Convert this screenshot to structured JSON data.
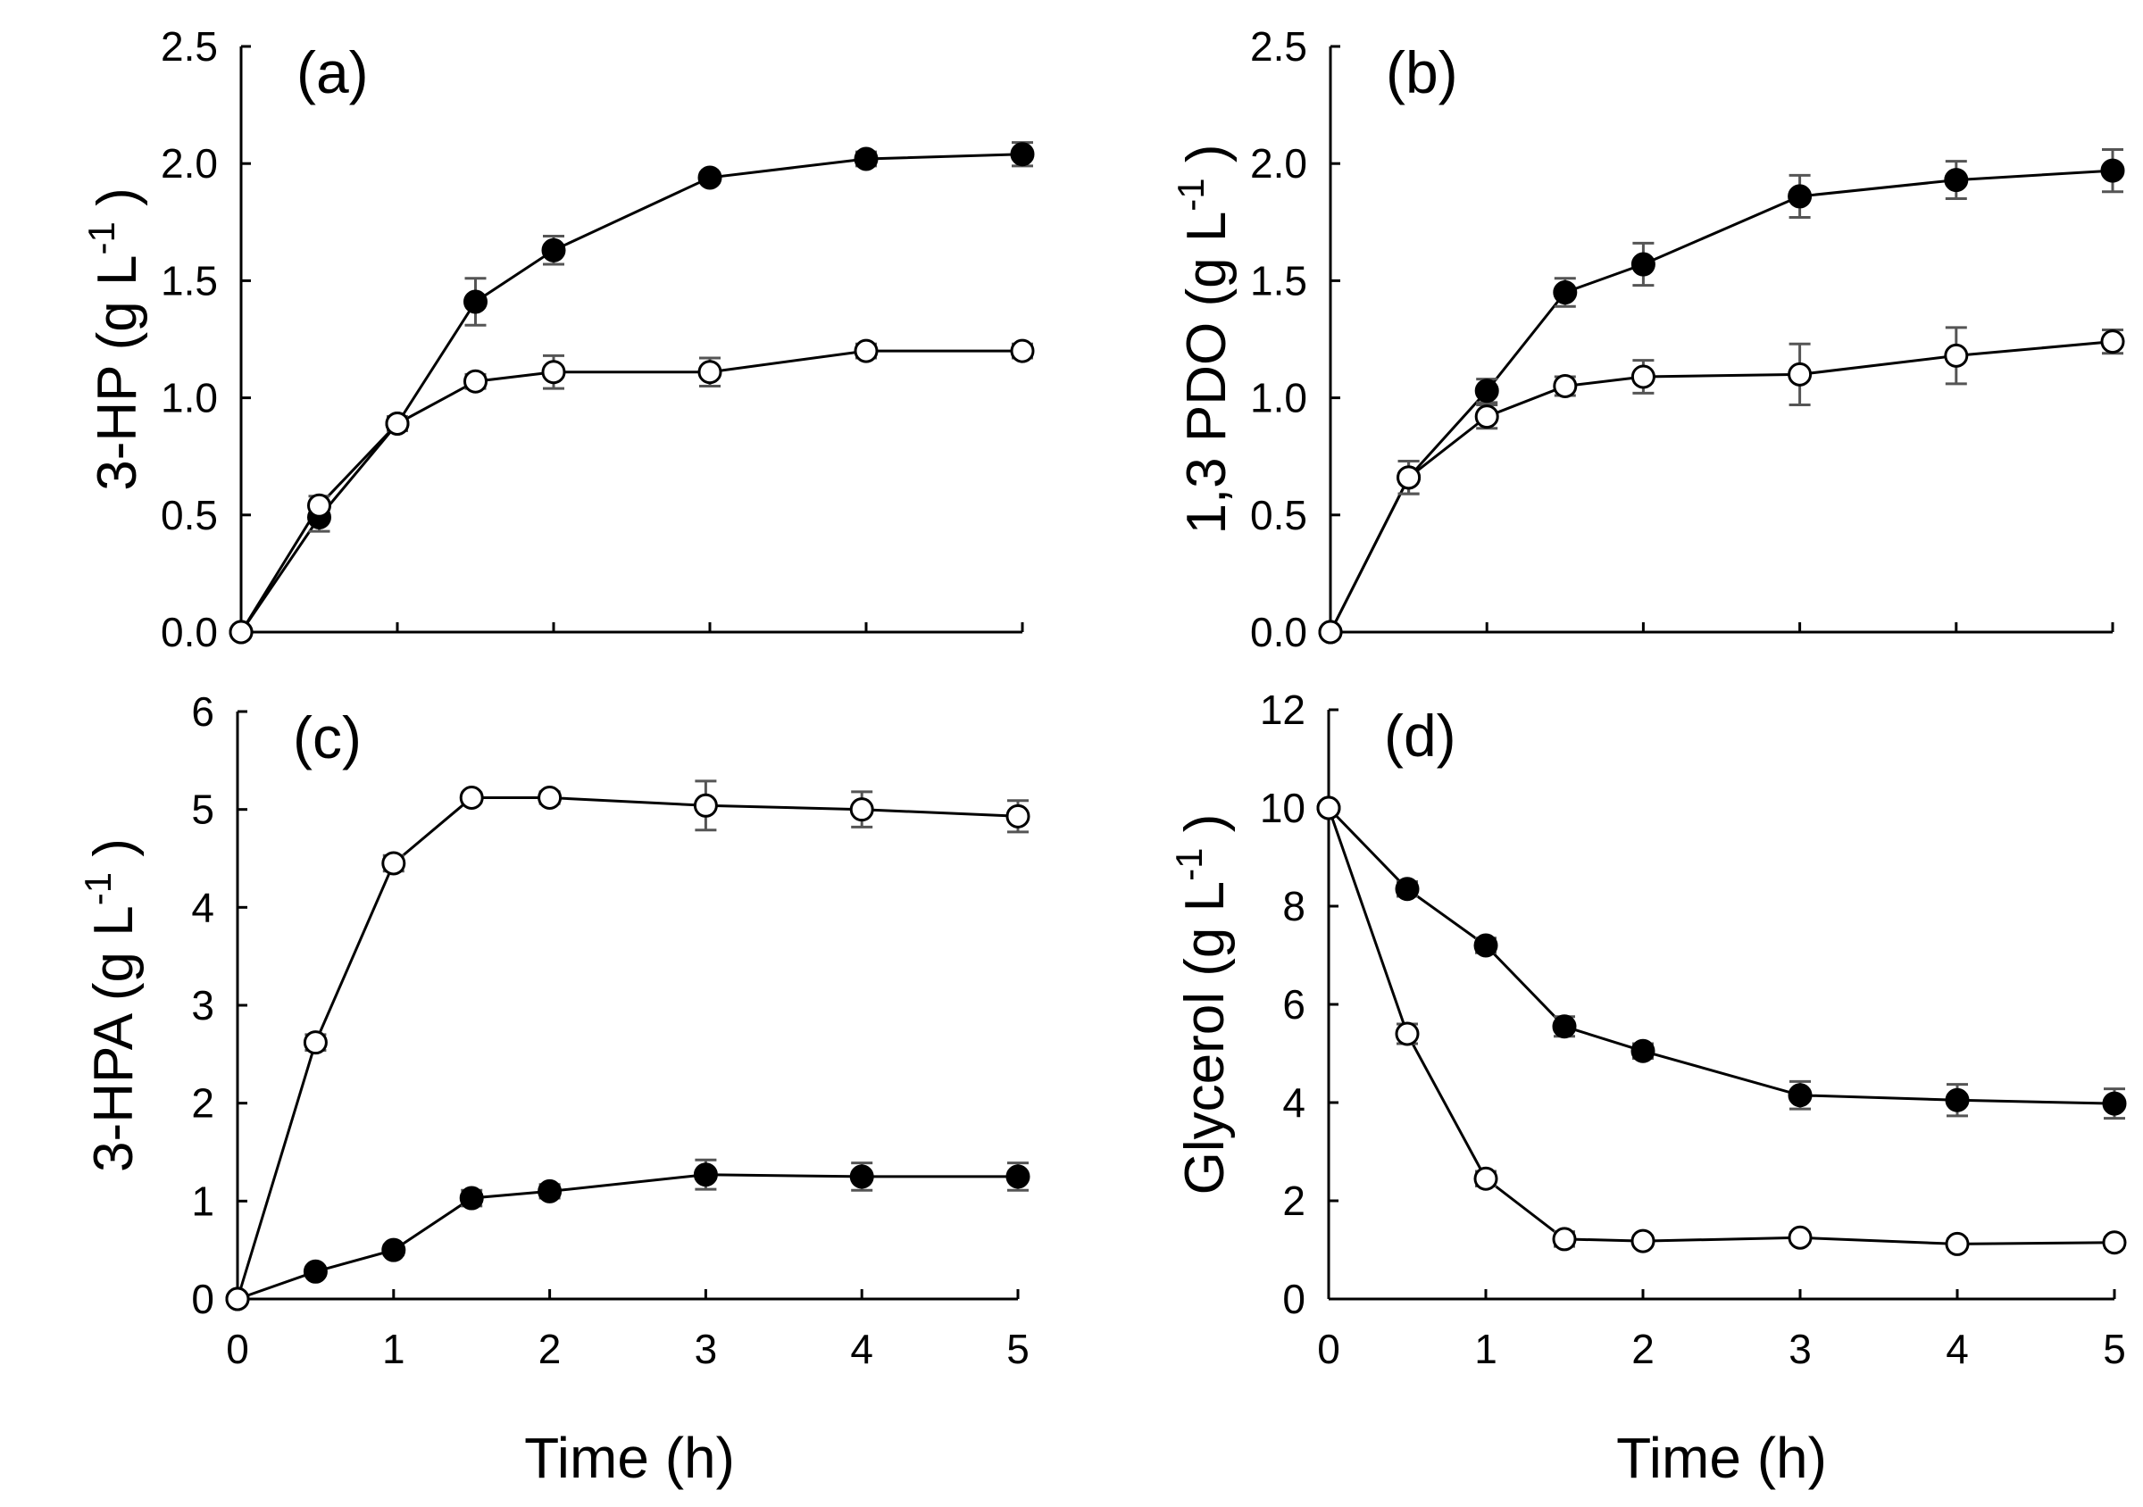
{
  "figure": {
    "x_axis_label": "Time (h)"
  },
  "chart_data": [
    {
      "id": "a",
      "type": "line",
      "panel_label": "(a)",
      "ylabel_main": "3-HP (g L",
      "ylabel_sup": "-1",
      "ylabel_close": ")",
      "xlabel": "",
      "xlim": [
        0,
        5
      ],
      "ylim": [
        0,
        2.5
      ],
      "xticks": [
        0,
        1,
        2,
        3,
        4,
        5
      ],
      "yticks": [
        0,
        0.5,
        1,
        1.5,
        2,
        2.5
      ],
      "ytick_labels": [
        "0.0",
        "0.5",
        "1.0",
        "1.5",
        "2.0",
        "2.5"
      ],
      "series": [
        {
          "name": "filled",
          "marker": "filled",
          "x": [
            0,
            0.5,
            1,
            1.5,
            2,
            3,
            4,
            5
          ],
          "values": [
            0,
            0.49,
            0.89,
            1.41,
            1.63,
            1.94,
            2.02,
            2.04
          ],
          "errors": [
            0,
            0.06,
            0.03,
            0.1,
            0.06,
            0.02,
            0.03,
            0.05
          ]
        },
        {
          "name": "open",
          "marker": "open",
          "x": [
            0,
            0.5,
            1,
            1.5,
            2,
            3,
            4,
            5
          ],
          "values": [
            0,
            0.54,
            0.89,
            1.07,
            1.11,
            1.11,
            1.2,
            1.2
          ],
          "errors": [
            0,
            0.04,
            0.03,
            0.03,
            0.07,
            0.06,
            0.03,
            0.03
          ]
        }
      ]
    },
    {
      "id": "b",
      "type": "line",
      "panel_label": "(b)",
      "ylabel_main": "1,3 PDO (g L",
      "ylabel_sup": "-1",
      "ylabel_close": ")",
      "xlabel": "Time (h)",
      "xlim": [
        0,
        5
      ],
      "ylim": [
        0,
        2.5
      ],
      "xticks": [
        0,
        1,
        2,
        3,
        4,
        5
      ],
      "yticks": [
        0,
        0.5,
        1,
        1.5,
        2,
        2.5
      ],
      "ytick_labels": [
        "0.0",
        "0.5",
        "1.0",
        "1.5",
        "2.0",
        "2.5"
      ],
      "series": [
        {
          "name": "filled",
          "marker": "filled",
          "x": [
            0,
            0.5,
            1,
            1.5,
            2,
            3,
            4,
            5
          ],
          "values": [
            0,
            0.66,
            1.03,
            1.45,
            1.57,
            1.86,
            1.93,
            1.97
          ],
          "errors": [
            0,
            0.07,
            0.05,
            0.06,
            0.09,
            0.09,
            0.08,
            0.09
          ]
        },
        {
          "name": "open",
          "marker": "open",
          "x": [
            0,
            0.5,
            1,
            1.5,
            2,
            3,
            4,
            5
          ],
          "values": [
            0,
            0.66,
            0.92,
            1.05,
            1.09,
            1.1,
            1.18,
            1.24
          ],
          "errors": [
            0,
            0.07,
            0.05,
            0.04,
            0.07,
            0.13,
            0.12,
            0.05
          ]
        }
      ]
    },
    {
      "id": "c",
      "type": "line",
      "panel_label": "(c)",
      "ylabel_main": "3-HPA (g L",
      "ylabel_sup": "-1",
      "ylabel_close": ")",
      "xlabel": "Time (h)",
      "xlim": [
        0,
        5
      ],
      "ylim": [
        0,
        6
      ],
      "xticks": [
        0,
        1,
        2,
        3,
        4,
        5
      ],
      "yticks": [
        0,
        1,
        2,
        3,
        4,
        5,
        6
      ],
      "ytick_labels": [
        "0",
        "1",
        "2",
        "3",
        "4",
        "5",
        "6"
      ],
      "series": [
        {
          "name": "filled",
          "marker": "filled",
          "x": [
            0,
            0.5,
            1,
            1.5,
            2,
            3,
            4,
            5
          ],
          "values": [
            0,
            0.28,
            0.5,
            1.03,
            1.1,
            1.27,
            1.25,
            1.25
          ],
          "errors": [
            0,
            0.04,
            0.05,
            0.08,
            0.07,
            0.15,
            0.14,
            0.14
          ]
        },
        {
          "name": "open",
          "marker": "open",
          "x": [
            0,
            0.5,
            1,
            1.5,
            2,
            3,
            4,
            5
          ],
          "values": [
            0,
            2.62,
            4.45,
            5.12,
            5.12,
            5.04,
            5.0,
            4.93
          ],
          "errors": [
            0,
            0.08,
            0.08,
            0.05,
            0.06,
            0.25,
            0.18,
            0.16
          ]
        }
      ]
    },
    {
      "id": "d",
      "type": "line",
      "panel_label": "(d)",
      "ylabel_main": "Glycerol (g L",
      "ylabel_sup": "-1",
      "ylabel_close": ")",
      "xlabel": "Time (h)",
      "xlim": [
        0,
        5
      ],
      "ylim": [
        0,
        12
      ],
      "xticks": [
        0,
        1,
        2,
        3,
        4,
        5
      ],
      "yticks": [
        0,
        2,
        4,
        6,
        8,
        10,
        12
      ],
      "ytick_labels": [
        "0",
        "2",
        "4",
        "6",
        "8",
        "10",
        "12"
      ],
      "series": [
        {
          "name": "filled",
          "marker": "filled",
          "x": [
            0,
            0.5,
            1,
            1.5,
            2,
            3,
            4,
            5
          ],
          "values": [
            10,
            8.35,
            7.2,
            5.55,
            5.05,
            4.15,
            4.05,
            3.98
          ],
          "errors": [
            0,
            0.15,
            0.15,
            0.2,
            0.15,
            0.28,
            0.32,
            0.3
          ]
        },
        {
          "name": "open",
          "marker": "open",
          "x": [
            0,
            0.5,
            1,
            1.5,
            2,
            3,
            4,
            5
          ],
          "values": [
            10,
            5.4,
            2.45,
            1.22,
            1.18,
            1.25,
            1.12,
            1.15
          ],
          "errors": [
            0,
            0.2,
            0.15,
            0.15,
            0.1,
            0.1,
            0.1,
            0.1
          ]
        }
      ]
    }
  ]
}
